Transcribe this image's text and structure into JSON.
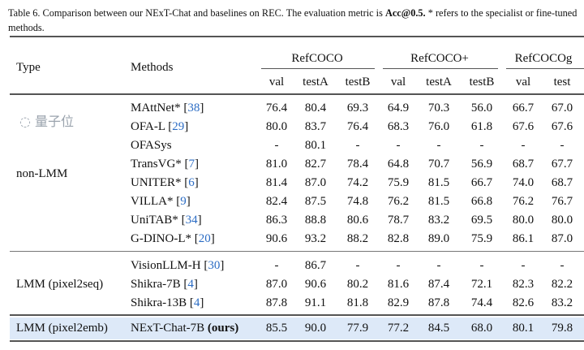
{
  "caption": {
    "prefix": "Table 6.  Comparison between our NExT-Chat and baselines on REC. The evaluation metric is ",
    "metric": "Acc@0.5.",
    "suffix": "  * refers to the specialist or fine-tuned methods."
  },
  "header": {
    "type": "Type",
    "methods": "Methods",
    "groups": [
      "RefCOCO",
      "RefCOCO+",
      "RefCOCOg"
    ],
    "splits": [
      "val",
      "testA",
      "testB",
      "val",
      "testA",
      "testB",
      "val",
      "test"
    ]
  },
  "sections": [
    {
      "type": "non-LMM",
      "rows": [
        {
          "method": "MAttNet*",
          "ref": "38",
          "values": [
            "76.4",
            "80.4",
            "69.3",
            "64.9",
            "70.3",
            "56.0",
            "66.7",
            "67.0"
          ]
        },
        {
          "method": "OFA-L",
          "ref": "29",
          "values": [
            "80.0",
            "83.7",
            "76.4",
            "68.3",
            "76.0",
            "61.8",
            "67.6",
            "67.6"
          ]
        },
        {
          "method": "OFASys",
          "ref": "",
          "values": [
            "-",
            "80.1",
            "-",
            "-",
            "-",
            "-",
            "-",
            "-"
          ]
        },
        {
          "method": "TransVG*",
          "ref": "7",
          "values": [
            "81.0",
            "82.7",
            "78.4",
            "64.8",
            "70.7",
            "56.9",
            "68.7",
            "67.7"
          ]
        },
        {
          "method": "UNITER*",
          "ref": "6",
          "values": [
            "81.4",
            "87.0",
            "74.2",
            "75.9",
            "81.5",
            "66.7",
            "74.0",
            "68.7"
          ]
        },
        {
          "method": "VILLA*",
          "ref": "9",
          "values": [
            "82.4",
            "87.5",
            "74.8",
            "76.2",
            "81.5",
            "66.8",
            "76.2",
            "76.7"
          ]
        },
        {
          "method": "UniTAB*",
          "ref": "34",
          "values": [
            "86.3",
            "88.8",
            "80.6",
            "78.7",
            "83.2",
            "69.5",
            "80.0",
            "80.0"
          ]
        },
        {
          "method": "G-DINO-L*",
          "ref": "20",
          "values": [
            "90.6",
            "93.2",
            "88.2",
            "82.8",
            "89.0",
            "75.9",
            "86.1",
            "87.0"
          ]
        }
      ]
    },
    {
      "type": "LMM (pixel2seq)",
      "rows": [
        {
          "method": "VisionLLM-H",
          "ref": "30",
          "values": [
            "-",
            "86.7",
            "-",
            "-",
            "-",
            "-",
            "-",
            "-"
          ]
        },
        {
          "method": "Shikra-7B",
          "ref": "4",
          "values": [
            "87.0",
            "90.6",
            "80.2",
            "81.6",
            "87.4",
            "72.1",
            "82.3",
            "82.2"
          ]
        },
        {
          "method": "Shikra-13B",
          "ref": "4",
          "values": [
            "87.8",
            "91.1",
            "81.8",
            "82.9",
            "87.8",
            "74.4",
            "82.6",
            "83.2"
          ]
        }
      ]
    },
    {
      "type": "LMM (pixel2emb)",
      "highlight": true,
      "highlight_color": "#dde9f8",
      "rows": [
        {
          "method": "NExT-Chat-7B",
          "bold_suffix": "(ours)",
          "ref": "",
          "values": [
            "85.5",
            "90.0",
            "77.9",
            "77.2",
            "84.5",
            "68.0",
            "80.1",
            "79.8"
          ]
        }
      ]
    }
  ],
  "watermark": "量子位",
  "link_color": "#2b6cc4"
}
